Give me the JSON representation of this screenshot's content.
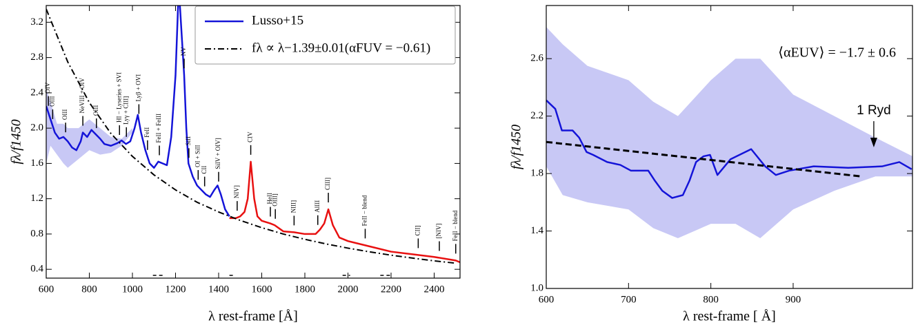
{
  "chart_data": [
    {
      "type": "line",
      "xlabel": "λ rest-frame [Å]",
      "ylabel": "fλ/f1450",
      "xlim": [
        600,
        2520
      ],
      "ylim": [
        0.3,
        3.39
      ],
      "xticks": [
        600,
        800,
        1000,
        1200,
        1400,
        1600,
        1800,
        2000,
        2200,
        2400
      ],
      "yticks": [
        0.4,
        0.8,
        1.2,
        1.6,
        {
          "value": 2,
          "label": "2.0"
        },
        2.4,
        2.8,
        3.2
      ],
      "legend": "upper right",
      "bands": [
        {
          "color": "#c8c8f5",
          "x": [
            600,
            620,
            650,
            680,
            700,
            750,
            800,
            850,
            900,
            950,
            1000
          ],
          "upper": [
            2.45,
            2.3,
            2.05,
            2.05,
            2.0,
            2.0,
            2.1,
            2.0,
            1.9,
            1.88,
            2.0
          ],
          "lower": [
            1.6,
            1.8,
            1.7,
            1.6,
            1.55,
            1.65,
            1.75,
            1.7,
            1.72,
            1.8,
            1.95
          ]
        }
      ],
      "series": [
        {
          "name": "Lusso+15",
          "color": "#1414d8",
          "style": "solid",
          "x": [
            600,
            620,
            640,
            660,
            680,
            700,
            720,
            740,
            760,
            770,
            790,
            810,
            830,
            850,
            870,
            900,
            930,
            950,
            970,
            990,
            1010,
            1025,
            1040,
            1060,
            1080,
            1100,
            1120,
            1140,
            1160,
            1180,
            1200,
            1215,
            1230,
            1240,
            1250,
            1260,
            1280,
            1300,
            1320,
            1340,
            1360,
            1380,
            1395,
            1410,
            1430,
            1450
          ],
          "values": [
            2.25,
            2.1,
            1.95,
            1.88,
            1.9,
            1.85,
            1.78,
            1.75,
            1.85,
            1.95,
            1.9,
            1.98,
            1.93,
            1.88,
            1.82,
            1.8,
            1.83,
            1.86,
            1.82,
            1.85,
            2.0,
            2.15,
            1.95,
            1.75,
            1.6,
            1.55,
            1.62,
            1.6,
            1.58,
            1.9,
            2.6,
            3.6,
            3.0,
            2.6,
            2.0,
            1.6,
            1.45,
            1.35,
            1.3,
            1.25,
            1.22,
            1.3,
            1.35,
            1.25,
            1.08,
            1.0
          ]
        },
        {
          "color": "#e81010",
          "style": "solid",
          "x": [
            1450,
            1480,
            1500,
            1520,
            1535,
            1549,
            1565,
            1580,
            1600,
            1640,
            1660,
            1700,
            1750,
            1800,
            1850,
            1870,
            1890,
            1909,
            1930,
            1960,
            2000,
            2100,
            2200,
            2300,
            2400,
            2500,
            2520
          ],
          "values": [
            0.98,
            0.98,
            1.0,
            1.05,
            1.2,
            1.62,
            1.2,
            1.0,
            0.95,
            0.92,
            0.9,
            0.83,
            0.82,
            0.8,
            0.8,
            0.85,
            0.92,
            1.08,
            0.9,
            0.76,
            0.72,
            0.66,
            0.6,
            0.57,
            0.54,
            0.5,
            0.48
          ]
        },
        {
          "name": "fλ ∝ λ−1.39±0.01(αFUV = −0.61)",
          "color": "#000000",
          "style": "dashdot",
          "x": [
            600,
            700,
            800,
            900,
            1000,
            1100,
            1200,
            1300,
            1400,
            1500,
            1600,
            1700,
            1800,
            1900,
            2000,
            2100,
            2200,
            2300,
            2400,
            2500
          ],
          "values": [
            3.35,
            2.75,
            2.29,
            1.94,
            1.68,
            1.47,
            1.3,
            1.16,
            1.05,
            0.954,
            0.872,
            0.8,
            0.74,
            0.687,
            0.64,
            0.598,
            0.56,
            0.527,
            0.496,
            0.469
          ]
        }
      ],
      "line_labels": [
        {
          "x": 610,
          "label": "OIV"
        },
        {
          "x": 630,
          "label": "OIII"
        },
        {
          "x": 690,
          "label": "OIII"
        },
        {
          "x": 770,
          "label": "NeVIII + OIV"
        },
        {
          "x": 833,
          "label": "OIII"
        },
        {
          "x": 940,
          "label": "HI − Lyseries + SVI"
        },
        {
          "x": 972,
          "label": "Lyγ + CIII]"
        },
        {
          "x": 1030,
          "label": "Lyβ + OVI"
        },
        {
          "x": 1070,
          "label": "FeII"
        },
        {
          "x": 1125,
          "label": "FeII + FeIII"
        },
        {
          "x": 1240,
          "label": "NV"
        },
        {
          "x": 1262,
          "label": "SiII"
        },
        {
          "x": 1305,
          "label": "OI + SiII"
        },
        {
          "x": 1335,
          "label": "CII"
        },
        {
          "x": 1400,
          "label": "SiIV + OIV]"
        },
        {
          "x": 1486,
          "label": "NIV]"
        },
        {
          "x": 1549,
          "label": "CIV"
        },
        {
          "x": 1640,
          "label": "HeII"
        },
        {
          "x": 1663,
          "label": "OIII]"
        },
        {
          "x": 1750,
          "label": "NIII]"
        },
        {
          "x": 1860,
          "label": "AlIII"
        },
        {
          "x": 1909,
          "label": "CIII]"
        },
        {
          "x": 2080,
          "label": "FeII − blend"
        },
        {
          "x": 2326,
          "label": "CII]"
        },
        {
          "x": 2424,
          "label": "[NIV]"
        },
        {
          "x": 2500,
          "label": "FeII − blend"
        }
      ],
      "windows": [
        [
          1095,
          1150
        ],
        [
          1450,
          1470
        ],
        [
          1975,
          2010
        ],
        [
          2150,
          2205
        ]
      ]
    },
    {
      "type": "line",
      "xlabel": "λ rest-frame [  Å]",
      "ylabel": "fλ/f1450",
      "xlim": [
        600,
        1045
      ],
      "ylim": [
        1.0,
        2.97
      ],
      "xticks": [
        600,
        700,
        800,
        900
      ],
      "yticks": [
        {
          "value": 1,
          "label": "1.0"
        },
        1.4,
        1.8,
        2.2,
        2.6
      ],
      "bands": [
        {
          "color": "#c8c8f5",
          "x": [
            600,
            620,
            650,
            700,
            730,
            760,
            800,
            830,
            860,
            900,
            950,
            1000,
            1045
          ],
          "upper": [
            2.82,
            2.7,
            2.55,
            2.45,
            2.3,
            2.2,
            2.45,
            2.6,
            2.6,
            2.35,
            2.2,
            2.05,
            1.92
          ],
          "lower": [
            1.85,
            1.65,
            1.6,
            1.55,
            1.42,
            1.35,
            1.45,
            1.45,
            1.35,
            1.55,
            1.68,
            1.78,
            1.78
          ]
        }
      ],
      "series": [
        {
          "color": "#1414d8",
          "style": "solid",
          "x": [
            600,
            611,
            619,
            632,
            640,
            649,
            657,
            674,
            690,
            703,
            724,
            732,
            741,
            753,
            766,
            774,
            782,
            791,
            799,
            808,
            824,
            849,
            866,
            879,
            895,
            925,
            967,
            1008,
            1029,
            1044
          ],
          "values": [
            2.31,
            2.25,
            2.1,
            2.1,
            2.05,
            1.95,
            1.93,
            1.88,
            1.86,
            1.82,
            1.82,
            1.75,
            1.68,
            1.63,
            1.65,
            1.75,
            1.88,
            1.92,
            1.93,
            1.79,
            1.9,
            1.97,
            1.85,
            1.79,
            1.82,
            1.85,
            1.84,
            1.85,
            1.88,
            1.83
          ]
        },
        {
          "color": "#000000",
          "style": "dashed",
          "x": [
            600,
            983
          ],
          "values": [
            2.02,
            1.78
          ]
        }
      ],
      "annotations": [
        {
          "text": "⟨αEUV⟩ = −1.7 ± 0.6"
        },
        {
          "text": "1 Ryd",
          "x": 998
        }
      ]
    }
  ]
}
